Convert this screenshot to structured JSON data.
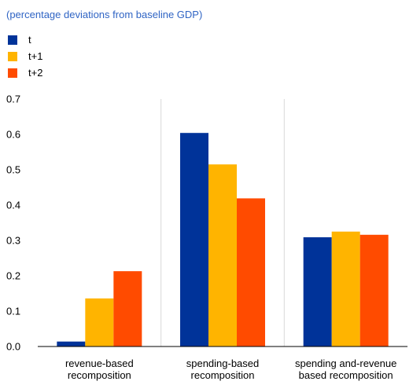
{
  "chart_data": {
    "type": "bar",
    "subtitle": "(percentage deviations from baseline GDP)",
    "categories": [
      [
        "revenue-based",
        "recomposition"
      ],
      [
        "spending-based",
        "recomposition"
      ],
      [
        "spending and-revenue",
        "based recomposition"
      ]
    ],
    "series": [
      {
        "name": "t",
        "color": "#003399",
        "values": [
          0.014,
          0.604,
          0.309
        ]
      },
      {
        "name": "t+1",
        "color": "#ffb400",
        "values": [
          0.136,
          0.515,
          0.325
        ]
      },
      {
        "name": "t+2",
        "color": "#ff4b00",
        "values": [
          0.213,
          0.419,
          0.316
        ]
      }
    ],
    "ylim": [
      0,
      0.7
    ],
    "yticks": [
      "0.0",
      "0.1",
      "0.2",
      "0.3",
      "0.4",
      "0.5",
      "0.6",
      "0.7"
    ],
    "grid": "vertical category separators",
    "legend_position": "top-left"
  }
}
